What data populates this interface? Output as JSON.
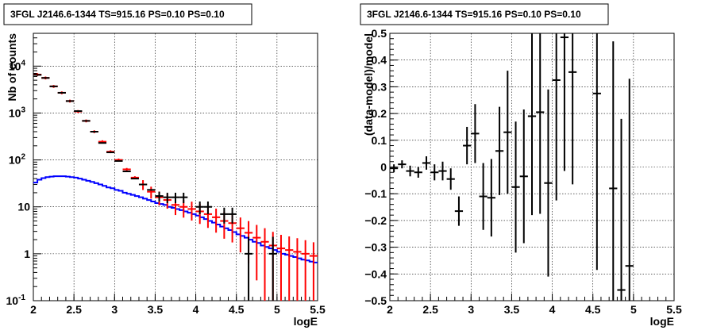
{
  "chart_data": [
    {
      "type": "histogram",
      "title": "3FGL J2146.6-1344 TS=915.16 PS=0.10 PS=0.10",
      "xlabel": "logE",
      "ylabel": "Nb of counts",
      "xlim": [
        2,
        5.5
      ],
      "ylim": [
        0.1,
        50000
      ],
      "yscale": "log",
      "grid": true,
      "x_ticks": [
        "2",
        "2.5",
        "3",
        "3.5",
        "4",
        "4.5",
        "5",
        "5.5"
      ],
      "y_ticks": [
        "10^-1",
        "1",
        "10",
        "10^2",
        "10^3",
        "10^4"
      ],
      "bin_width": 0.1,
      "series": [
        {
          "color": "#000000",
          "style": "points",
          "x": [
            2.05,
            2.15,
            2.25,
            2.35,
            2.45,
            2.55,
            2.65,
            2.75,
            2.85,
            2.95,
            3.05,
            3.15,
            3.25,
            3.35,
            3.45,
            3.55,
            3.65,
            3.75,
            3.85,
            4.05,
            4.15,
            4.35,
            4.45,
            4.65,
            4.95
          ],
          "y": [
            6500,
            5600,
            3700,
            2700,
            1800,
            1100,
            680,
            400,
            230,
            145,
            95,
            57,
            40,
            30,
            23,
            17,
            16,
            16,
            16,
            10,
            10,
            7,
            7,
            1,
            1
          ],
          "yerr_low": [
            0,
            0,
            0,
            0,
            0,
            0,
            0,
            0,
            0,
            0,
            0,
            0,
            0,
            0,
            0,
            4,
            4,
            4,
            4,
            3,
            3,
            2.6,
            2.6,
            0.9,
            0.9
          ],
          "yerr_high": [
            0,
            0,
            0,
            0,
            0,
            0,
            0,
            0,
            0,
            0,
            0,
            0,
            0,
            0,
            0,
            4,
            4,
            4,
            4,
            3,
            3,
            2.6,
            2.6,
            1.3,
            1.3
          ]
        },
        {
          "color": "#ff0000",
          "style": "errorbars",
          "x": [
            2.05,
            2.15,
            2.25,
            2.35,
            2.45,
            2.55,
            2.65,
            2.75,
            2.85,
            2.95,
            3.05,
            3.15,
            3.25,
            3.35,
            3.45,
            3.55,
            3.65,
            3.75,
            3.85,
            3.95,
            4.05,
            4.15,
            4.25,
            4.35,
            4.45,
            4.55,
            4.65,
            4.75,
            4.85,
            4.95,
            5.05,
            5.15,
            5.25,
            5.35,
            5.45
          ],
          "y": [
            6600,
            5600,
            3700,
            2700,
            1800,
            1080,
            680,
            400,
            245,
            150,
            100,
            63,
            42,
            30,
            21,
            16,
            14,
            11,
            10,
            9,
            8,
            7,
            6,
            5,
            4.5,
            3.5,
            2.8,
            2.2,
            1.8,
            1.5,
            1.3,
            1.2,
            1.1,
            1,
            0.9
          ]
        },
        {
          "color": "#0000ff",
          "style": "step",
          "x_edges": [
            2.0,
            2.05,
            2.1,
            2.15,
            2.2,
            2.25,
            2.3,
            2.35,
            2.4,
            2.45,
            2.5,
            2.55,
            2.6,
            2.65,
            2.7,
            2.75,
            2.8,
            2.85,
            2.9,
            2.95,
            3.0,
            3.05,
            3.1,
            3.15,
            3.2,
            3.25,
            3.3,
            3.35,
            3.4,
            3.45,
            3.5,
            3.55,
            3.6,
            3.65,
            3.7,
            3.75,
            3.8,
            3.85,
            3.9,
            3.95,
            4.0,
            4.05,
            4.1,
            4.15,
            4.2,
            4.25,
            4.3,
            4.35,
            4.4,
            4.45,
            4.5,
            4.55,
            4.6,
            4.65,
            4.7,
            4.75,
            4.8,
            4.85,
            4.9,
            4.95,
            5.0,
            5.05,
            5.1,
            5.15,
            5.2,
            5.25,
            5.3,
            5.35,
            5.4,
            5.45,
            5.5
          ],
          "y": [
            33,
            38,
            41,
            43,
            44,
            45,
            45,
            45,
            44,
            43,
            42,
            40,
            38,
            36,
            34,
            32,
            30,
            28,
            26,
            25,
            23,
            22,
            20,
            19,
            18,
            17,
            16,
            15,
            14,
            13,
            12,
            11.5,
            11,
            10,
            9.5,
            9,
            8.5,
            8,
            7.5,
            7,
            6.5,
            6,
            5.5,
            5,
            4.6,
            4.2,
            3.8,
            3.5,
            3.2,
            2.9,
            2.6,
            2.4,
            2.2,
            2,
            1.8,
            1.7,
            1.5,
            1.4,
            1.3,
            1.2,
            1.1,
            1,
            0.95,
            0.9,
            0.85,
            0.8,
            0.75,
            0.72,
            0.68,
            0.65
          ]
        }
      ]
    },
    {
      "type": "scatter",
      "title": "3FGL J2146.6-1344 TS=915.16 PS=0.10 PS=0.10",
      "xlabel": "logE",
      "ylabel": "(data-model)/model",
      "xlim": [
        2,
        5.5
      ],
      "ylim": [
        -0.5,
        0.5
      ],
      "grid": true,
      "x_ticks": [
        "2",
        "2.5",
        "3",
        "3.5",
        "4",
        "4.5",
        "5",
        "5.5"
      ],
      "y_ticks": [
        "-0.5",
        "-0.4",
        "-0.3",
        "-0.2",
        "-0.1",
        "0",
        "0.1",
        "0.2",
        "0.3",
        "0.4",
        "0.5"
      ],
      "series": [
        {
          "color": "#000000",
          "x": [
            2.05,
            2.15,
            2.25,
            2.35,
            2.45,
            2.55,
            2.65,
            2.75,
            2.85,
            2.95,
            3.05,
            3.15,
            3.25,
            3.35,
            3.45,
            3.55,
            3.65,
            3.75,
            3.85,
            3.95,
            4.05,
            4.15,
            4.25,
            4.55,
            4.75,
            4.85,
            4.95
          ],
          "y": [
            -0.005,
            0.01,
            -0.015,
            -0.02,
            0.015,
            -0.02,
            -0.015,
            -0.045,
            -0.165,
            0.08,
            0.125,
            -0.11,
            -0.115,
            0.06,
            0.13,
            -0.075,
            -0.035,
            0.19,
            0.205,
            -0.06,
            0.325,
            0.485,
            0.355,
            0.275,
            -0.08,
            -0.46,
            -0.37
          ],
          "err": [
            0.015,
            0.015,
            0.02,
            0.02,
            0.025,
            0.03,
            0.035,
            0.04,
            0.055,
            0.07,
            0.11,
            0.125,
            0.145,
            0.165,
            0.23,
            0.245,
            0.25,
            0.37,
            0.38,
            0.35,
            0.45,
            0.5,
            0.42,
            0.66,
            0.55,
            0.64,
            0.7
          ]
        }
      ]
    }
  ]
}
